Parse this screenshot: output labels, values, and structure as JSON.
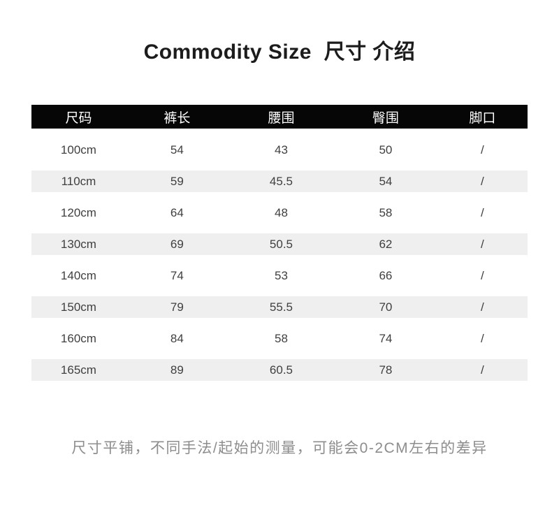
{
  "page": {
    "title": "Commodity Size  尺寸 介绍",
    "footnote": "尺寸平铺，不同手法/起始的测量，可能会0-2CM左右的差异"
  },
  "colors": {
    "page_background": "#ffffff",
    "header_background": "#060606",
    "header_text": "#ffffff",
    "alt_row_background": "#efefef",
    "body_text": "#3f3f3f",
    "note_text": "#8d8d8d"
  },
  "chart_data": {
    "type": "table",
    "title": "Commodity Size  尺寸 介绍",
    "columns": [
      "尺码",
      "裤长",
      "腰围",
      "臀围",
      "脚口"
    ],
    "rows": [
      [
        "100cm",
        "54",
        "43",
        "50",
        "/"
      ],
      [
        "110cm",
        "59",
        "45.5",
        "54",
        "/"
      ],
      [
        "120cm",
        "64",
        "48",
        "58",
        "/"
      ],
      [
        "130cm",
        "69",
        "50.5",
        "62",
        "/"
      ],
      [
        "140cm",
        "74",
        "53",
        "66",
        "/"
      ],
      [
        "150cm",
        "79",
        "55.5",
        "70",
        "/"
      ],
      [
        "160cm",
        "84",
        "58",
        "74",
        "/"
      ],
      [
        "165cm",
        "89",
        "60.5",
        "78",
        "/"
      ]
    ],
    "layout_hints": {
      "striped_rows": [
        1,
        3,
        5,
        7
      ],
      "header_style": "black bar with white text",
      "note": "尺寸平铺，不同手法/起始的测量，可能会0-2CM左右的差异"
    }
  }
}
